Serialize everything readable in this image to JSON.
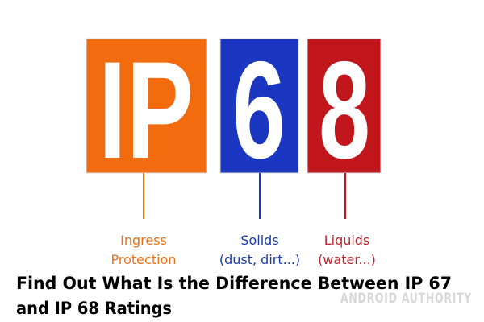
{
  "boxes": [
    {
      "text": "IP",
      "label": [
        "Ingress",
        "Protection"
      ]
    },
    {
      "text": "6",
      "label": [
        "Solids",
        "(dust, dirt...)"
      ]
    },
    {
      "text": "8",
      "label": [
        "Liquids",
        "(water...)"
      ]
    }
  ],
  "caption": [
    "Find Out What Is the Difference Between IP 67",
    "and IP 68 Ratings"
  ],
  "watermark": "ANDROID AUTHORITY"
}
